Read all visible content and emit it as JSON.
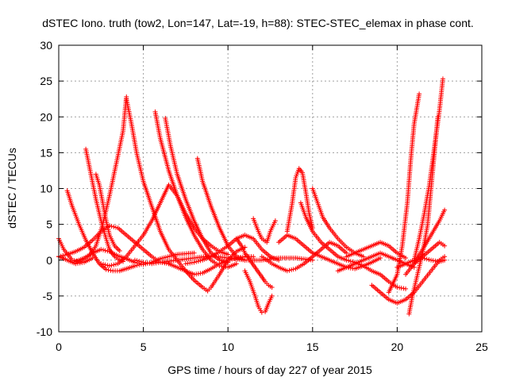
{
  "chart_data": {
    "type": "scatter",
    "title": "dSTEC Iono. truth (tow2, Lon=147, Lat=-19, h=88): STEC-STEC_elemax in phase cont.",
    "xlabel": "GPS time / hours of day 227 of year 2015",
    "ylabel": "dSTEC  / TECUs",
    "xlim": [
      0,
      25
    ],
    "ylim": [
      -10,
      30
    ],
    "x_ticks": [
      "0",
      "5",
      "10",
      "15",
      "20",
      "25"
    ],
    "y_ticks": [
      "-10",
      "-5",
      "0",
      "5",
      "10",
      "15",
      "20",
      "25",
      "30"
    ],
    "grid": true,
    "marker": "+",
    "color": "#ff0000",
    "series": [
      {
        "x": [
          0.0,
          0.3,
          0.8,
          1.3,
          1.8,
          2.2,
          2.6,
          3.0,
          3.4,
          3.8,
          4.0
        ],
        "values": [
          3.0,
          1.5,
          0.0,
          -0.2,
          0.6,
          2.0,
          5.0,
          9.0,
          13.5,
          18.0,
          22.8
        ]
      },
      {
        "x": [
          4.0,
          4.3,
          4.6,
          5.0,
          5.5,
          6.0,
          6.5,
          7.0,
          7.5,
          8.0,
          8.5,
          8.8
        ],
        "values": [
          22.5,
          19.0,
          15.0,
          11.0,
          7.5,
          4.0,
          1.5,
          0.0,
          -1.5,
          -2.8,
          -3.8,
          -4.3
        ]
      },
      {
        "x": [
          8.8,
          9.0,
          9.5,
          10.0,
          10.5,
          11.0
        ],
        "values": [
          -4.3,
          -3.8,
          -2.0,
          0.0,
          1.2,
          1.8
        ]
      },
      {
        "x": [
          0.5,
          0.8,
          1.2,
          1.6,
          2.0,
          2.4,
          2.8,
          3.2,
          3.6,
          4.0,
          4.5,
          5.0
        ],
        "values": [
          9.7,
          7.5,
          5.0,
          2.8,
          1.0,
          -0.5,
          -1.3,
          -1.5,
          -1.5,
          -1.2,
          -0.8,
          -0.5
        ]
      },
      {
        "x": [
          1.6,
          1.9,
          2.2,
          2.5,
          2.8,
          3.0,
          3.3,
          3.6,
          3.8
        ],
        "values": [
          15.5,
          12.0,
          8.5,
          5.5,
          3.0,
          1.5,
          0.5,
          0.0,
          -0.2
        ]
      },
      {
        "x": [
          2.2,
          2.4,
          2.6,
          2.8,
          3.0,
          3.3,
          3.6
        ],
        "values": [
          12.0,
          10.5,
          8.0,
          5.5,
          3.5,
          2.0,
          1.3
        ]
      },
      {
        "x": [
          5.7,
          6.0,
          6.5,
          7.0,
          7.5,
          8.0,
          8.5,
          9.0,
          9.5,
          10.0,
          10.5
        ],
        "values": [
          20.7,
          17.0,
          12.5,
          9.0,
          6.0,
          3.5,
          1.5,
          0.0,
          -0.8,
          -1.0,
          -0.5
        ]
      },
      {
        "x": [
          6.3,
          6.6,
          7.0,
          7.5,
          8.0,
          8.5,
          9.0,
          9.5,
          10.0
        ],
        "values": [
          19.8,
          16.0,
          12.0,
          8.5,
          5.5,
          3.0,
          1.0,
          0.0,
          -0.3
        ]
      },
      {
        "x": [
          8.2,
          8.5,
          9.0,
          9.5,
          10.0,
          10.5,
          11.0
        ],
        "values": [
          14.2,
          11.0,
          7.5,
          4.5,
          2.0,
          0.5,
          0.0
        ]
      },
      {
        "x": [
          0.0,
          0.5,
          1.0,
          1.5,
          2.0,
          2.5,
          3.0,
          3.5,
          4.0,
          4.5,
          5.0,
          5.5,
          6.0,
          6.5
        ],
        "values": [
          0.5,
          0.8,
          1.2,
          1.8,
          2.8,
          4.0,
          4.8,
          4.5,
          3.5,
          2.5,
          1.5,
          0.5,
          -0.3,
          -0.5
        ]
      },
      {
        "x": [
          2.5,
          3.0,
          3.5,
          4.0,
          4.5,
          5.0,
          5.5,
          6.0,
          6.5,
          7.0,
          7.5,
          8.0,
          8.5,
          9.0,
          9.5,
          10.0
        ],
        "values": [
          -0.5,
          -0.8,
          -0.5,
          0.5,
          2.0,
          3.5,
          5.5,
          8.0,
          10.5,
          9.0,
          6.5,
          4.5,
          3.0,
          2.0,
          1.2,
          0.8
        ]
      },
      {
        "x": [
          1.0,
          1.5,
          2.0,
          2.5,
          3.0,
          3.5,
          4.0,
          4.5,
          5.0,
          5.5,
          6.0,
          7.0,
          8.0
        ],
        "values": [
          -0.2,
          0.3,
          1.0,
          1.5,
          1.2,
          0.6,
          0.2,
          -0.3,
          -0.6,
          -0.3,
          0.2,
          0.8,
          1.0
        ]
      },
      {
        "x": [
          4.5,
          5.0,
          5.5,
          6.0,
          7.0,
          8.0,
          9.0,
          10.0,
          11.0,
          12.0,
          13.0,
          14.0,
          15.0
        ],
        "values": [
          0.0,
          -0.3,
          -0.5,
          -0.3,
          0.0,
          0.3,
          0.6,
          0.3,
          0.0,
          0.0,
          0.3,
          0.3,
          0.0
        ]
      },
      {
        "x": [
          6.5,
          7.0,
          7.5,
          8.0,
          8.5,
          9.0,
          9.5,
          10.0,
          10.5,
          11.0,
          11.5
        ],
        "values": [
          -0.5,
          -1.0,
          -1.5,
          -2.0,
          -1.8,
          -1.2,
          -0.5,
          0.0,
          0.3,
          0.5,
          0.5
        ]
      },
      {
        "x": [
          7.5,
          8.0,
          8.5,
          9.0,
          9.5,
          10.0,
          10.5,
          11.0,
          11.5,
          12.0,
          12.5,
          13.0
        ],
        "values": [
          -0.5,
          -0.3,
          0.0,
          0.5,
          1.2,
          2.0,
          3.0,
          3.5,
          3.0,
          1.5,
          0.5,
          0.0
        ]
      },
      {
        "x": [
          10.5,
          10.8,
          11.0,
          11.3,
          11.6,
          11.9,
          12.2,
          12.4,
          12.6
        ],
        "values": [
          3.0,
          2.0,
          1.0,
          0.0,
          -1.0,
          -2.0,
          -3.0,
          -3.5,
          -3.8
        ]
      },
      {
        "x": [
          11.0,
          11.3,
          11.6,
          11.8,
          12.0,
          12.2,
          12.4,
          12.6
        ],
        "values": [
          -1.5,
          -3.0,
          -5.0,
          -6.5,
          -7.3,
          -7.2,
          -6.0,
          -5.0
        ]
      },
      {
        "x": [
          11.5,
          11.8,
          12.0,
          12.3,
          12.5,
          12.8
        ],
        "values": [
          5.8,
          4.0,
          3.0,
          2.5,
          4.0,
          5.5
        ]
      },
      {
        "x": [
          12.0,
          12.3,
          12.6,
          13.0,
          13.5,
          14.0,
          14.5,
          15.0,
          15.5,
          16.0,
          16.5,
          17.0
        ],
        "values": [
          0.5,
          0.0,
          -0.5,
          -1.0,
          -1.5,
          -1.2,
          -0.5,
          0.5,
          1.5,
          2.5,
          2.0,
          1.0
        ]
      },
      {
        "x": [
          13.5,
          13.8,
          14.0,
          14.2,
          14.4,
          14.6,
          14.8,
          15.0
        ],
        "values": [
          4.0,
          8.0,
          11.5,
          12.8,
          12.2,
          9.5,
          6.5,
          4.5
        ]
      },
      {
        "x": [
          14.3,
          14.6,
          15.0,
          15.5,
          16.0,
          16.5,
          17.0,
          17.5,
          18.0,
          18.5,
          19.0,
          19.5,
          20.0,
          20.5
        ],
        "values": [
          8.0,
          6.0,
          4.0,
          2.5,
          1.5,
          0.5,
          0.0,
          -0.3,
          -0.8,
          -1.5,
          -2.0,
          -3.0,
          -3.8,
          -4.0
        ]
      },
      {
        "x": [
          15.0,
          15.3,
          15.6,
          16.0,
          16.5,
          17.0,
          17.5,
          18.0
        ],
        "values": [
          10.0,
          8.0,
          6.0,
          4.5,
          3.0,
          1.8,
          1.0,
          0.5
        ]
      },
      {
        "x": [
          13.0,
          13.5,
          14.0,
          14.5,
          15.0,
          15.5,
          16.0,
          16.5,
          17.0,
          17.5,
          18.0,
          18.5,
          19.0
        ],
        "values": [
          2.5,
          3.5,
          3.0,
          2.0,
          1.0,
          0.5,
          0.0,
          -0.5,
          -1.0,
          -1.2,
          -0.8,
          -0.3,
          0.3
        ]
      },
      {
        "x": [
          16.5,
          17.0,
          17.5,
          18.0,
          18.5,
          19.0,
          19.5,
          20.0,
          20.5,
          21.0
        ],
        "values": [
          -1.5,
          -1.0,
          -0.5,
          0.0,
          0.5,
          1.0,
          0.5,
          0.0,
          -0.5,
          -1.0
        ]
      },
      {
        "x": [
          17.0,
          17.5,
          18.0,
          18.5,
          19.0,
          19.5,
          20.0,
          20.5
        ],
        "values": [
          0.5,
          1.0,
          1.5,
          2.0,
          2.5,
          2.0,
          1.0,
          0.3
        ]
      },
      {
        "x": [
          18.5,
          19.0,
          19.5,
          20.0,
          20.5,
          21.0,
          21.5,
          22.0,
          22.5,
          22.8
        ],
        "values": [
          -3.5,
          -4.5,
          -5.5,
          -6.0,
          -5.5,
          -4.5,
          -3.0,
          -1.5,
          0.0,
          0.5
        ]
      },
      {
        "x": [
          19.5,
          20.0,
          20.3,
          20.6,
          20.8,
          21.0,
          21.3
        ],
        "values": [
          -4.5,
          -2.0,
          2.0,
          8.0,
          14.0,
          19.0,
          23.2
        ]
      },
      {
        "x": [
          20.7,
          20.9,
          21.2,
          21.5,
          21.8,
          22.0,
          22.2,
          22.4
        ],
        "values": [
          -7.5,
          -5.0,
          -2.0,
          1.0,
          5.0,
          10.0,
          15.0,
          20.0
        ]
      },
      {
        "x": [
          21.0,
          21.3,
          21.6,
          21.9,
          22.1,
          22.3,
          22.5,
          22.7
        ],
        "values": [
          0.0,
          3.0,
          6.5,
          10.5,
          14.0,
          17.5,
          21.0,
          25.3
        ]
      },
      {
        "x": [
          20.5,
          21.0,
          21.5,
          22.0,
          22.5,
          22.8
        ],
        "values": [
          -2.0,
          -0.5,
          1.5,
          3.5,
          5.5,
          7.0
        ]
      },
      {
        "x": [
          21.0,
          21.5,
          22.0,
          22.5,
          22.8
        ],
        "values": [
          -0.5,
          0.5,
          1.5,
          2.5,
          2.0
        ]
      },
      {
        "x": [
          20.0,
          20.5,
          21.0,
          21.5,
          22.0,
          22.5,
          22.8
        ],
        "values": [
          -1.0,
          -0.5,
          0.0,
          0.3,
          0.0,
          -0.2,
          0.0
        ]
      },
      {
        "x": [
          0.0,
          0.5,
          1.0,
          1.5,
          2.0
        ],
        "values": [
          0.5,
          0.0,
          -0.5,
          -0.3,
          0.3
        ]
      }
    ]
  }
}
